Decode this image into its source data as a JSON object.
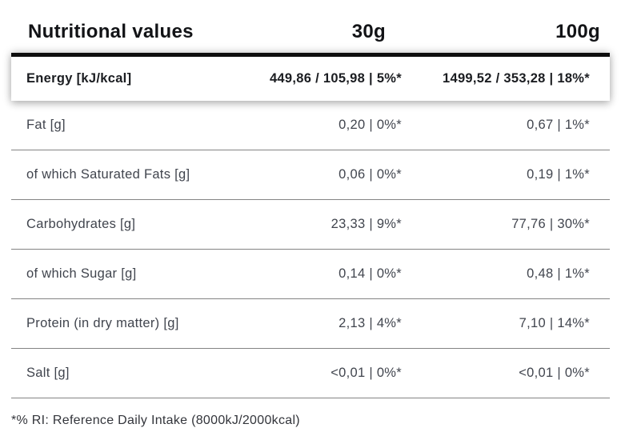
{
  "table": {
    "header": {
      "title": "Nutritional values",
      "col_30g": "30g",
      "col_100g": "100g"
    },
    "highlight_row": {
      "label": "Energy [kJ/kcal]",
      "value_30g": "449,86 / 105,98 | 5%*",
      "value_100g": "1499,52 / 353,28 | 18%*"
    },
    "rows": [
      {
        "label": "Fat [g]",
        "value_30g": "0,20 | 0%*",
        "value_100g": "0,67 | 1%*"
      },
      {
        "label": "of which Saturated Fats [g]",
        "value_30g": "0,06 | 0%*",
        "value_100g": "0,19 | 1%*"
      },
      {
        "label": "Carbohydrates [g]",
        "value_30g": "23,33 | 9%*",
        "value_100g": "77,76 | 30%*"
      },
      {
        "label": "of which Sugar [g]",
        "value_30g": "0,14 | 0%*",
        "value_100g": "0,48 | 1%*"
      },
      {
        "label": "Protein (in dry matter) [g]",
        "value_30g": "2,13 | 4%*",
        "value_100g": "7,10 | 14%*"
      },
      {
        "label": "Salt [g]",
        "value_30g": "<0,01 | 0%*",
        "value_100g": "<0,01 | 0%*"
      }
    ],
    "footnote": "*% RI: Reference Daily Intake (8000kJ/2000kcal)"
  },
  "colors": {
    "header_text": "#121316",
    "row_text": "#41454e",
    "divider": "#848484",
    "accent_bar": "#0d0d0d",
    "card_background": "#ffffff"
  }
}
